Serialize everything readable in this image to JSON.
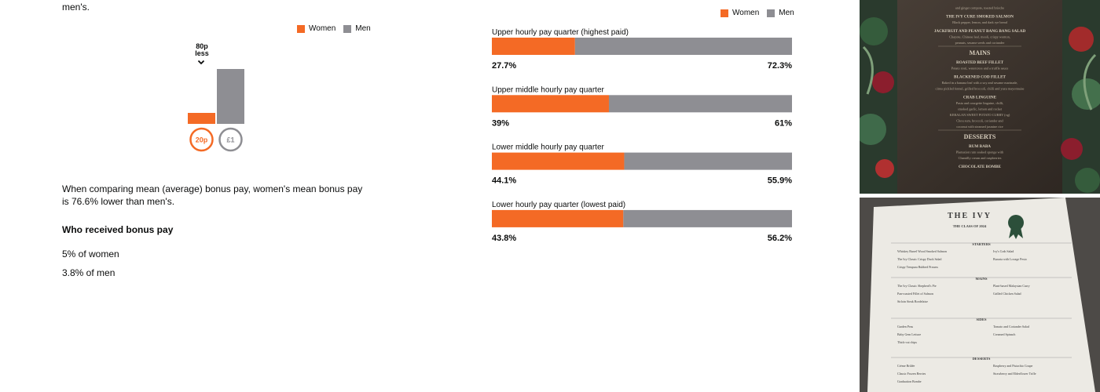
{
  "intro": {
    "trailing_text": "men's."
  },
  "legend": {
    "women": "Women",
    "men": "Men"
  },
  "colors": {
    "women": "#f46a25",
    "men": "#8e8e93"
  },
  "chart_data": [
    {
      "type": "bar",
      "title": "",
      "categories": [
        "Women",
        "Men"
      ],
      "values": [
        0.2,
        1.0
      ],
      "value_labels": [
        "20p",
        "£1"
      ],
      "annotation": {
        "line1": "80p",
        "line2": "less"
      },
      "ylim": [
        0,
        1
      ]
    },
    {
      "type": "bar",
      "orientation": "horizontal-stacked",
      "series_names": [
        "Women",
        "Men"
      ],
      "quartiles": [
        {
          "label": "Upper hourly pay quarter (highest paid)",
          "women": 27.7,
          "men": 72.3,
          "women_label": "27.7%",
          "men_label": "72.3%"
        },
        {
          "label": "Upper middle hourly pay quarter",
          "women": 39,
          "men": 61,
          "women_label": "39%",
          "men_label": "61%"
        },
        {
          "label": "Lower middle hourly pay quarter",
          "women": 44.1,
          "men": 55.9,
          "women_label": "44.1%",
          "men_label": "55.9%"
        },
        {
          "label": "Lower hourly pay quarter (lowest paid)",
          "women": 43.8,
          "men": 56.2,
          "women_label": "43.8%",
          "men_label": "56.2%"
        }
      ]
    }
  ],
  "bonus": {
    "comparison_text": "When comparing mean (average) bonus pay, women's mean bonus pay is 76.6% lower than men's.",
    "heading": "Who received bonus pay",
    "women_stat": "5% of women",
    "men_stat": "3.8% of men"
  },
  "photos": {
    "menu_top": {
      "lines": [
        "and ginger compote, toasted brioche",
        "THE IVY CURE SMOKED SALMON",
        "Black pepper, lemon, and dark rye bread",
        "JACKFRUIT AND PEANUT BANG BANG SALAD",
        "Chayote, Chinese leaf, mooli, crispy wonton,",
        "peanuts, sesame seeds and coriander",
        "MAINS",
        "ROASTED BEEF FILLET",
        "Potato rosti, watercress and a truffle sauce",
        "BLACKENED COD FILLET",
        "Baked in a banana leaf with a soy and sesame marinade,",
        "citrus pickled fennel, grilled broccoli, chilli and yuzu mayonnaise",
        "CRAB LINGUINE",
        "Pasta and courgette linguine, chilli,",
        "smoked garlic, lemon and rocket",
        "KERALAN SWEET POTATO CURRY (vg)",
        "Chou sum, broccoli, coriander and",
        "coconut with steamed jasmine rice",
        "DESSERTS",
        "RUM BABA",
        "Plantation rum soaked sponge with",
        "Chantilly cream and raspberries",
        "CHOCOLATE BOMBE"
      ]
    },
    "menu_bottom": {
      "title": "THE IVY",
      "subtitle": "THE CLASS OF 2024",
      "sections": [
        "STARTERS",
        "MAINS",
        "SIDES",
        "DESSERTS"
      ],
      "starters": [
        "Whiskey Barrel Wood Smoked Salmon",
        "Ivy's Crab Salad",
        "The Ivy Classic Crispy Duck Salad",
        "Burrata with Lovage Pesto",
        "Crispy Tempura Rubbed Prawns"
      ],
      "mains": [
        "The Ivy Classic Shepherd's Pie",
        "Plant-based Malaysian Curry",
        "Pan-roasted Fillet of Salmon",
        "Grilled Chicken Salad",
        "Sirloin Steak Bordelaise"
      ],
      "sides": [
        "Garden Peas",
        "Tomato and Coriander Salad",
        "Baby Gem Lettuce",
        "Creamed Spinach",
        "Thick-cut chips"
      ],
      "desserts": [
        "Crème Brûlée",
        "Raspberry and Pistachio Coupe",
        "Classic Frozen Berries",
        "Strawberry and Elderflower Trifle",
        "Graduation Bombe"
      ]
    }
  }
}
